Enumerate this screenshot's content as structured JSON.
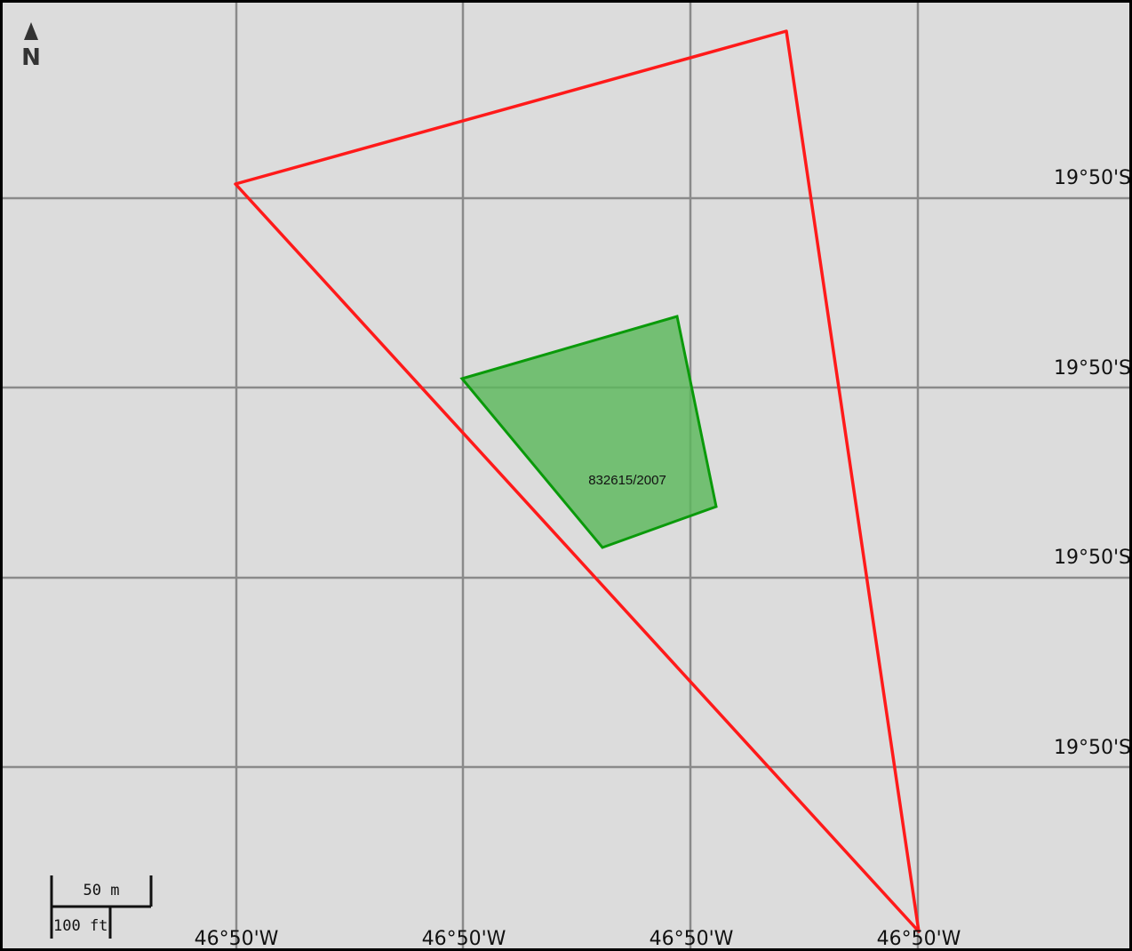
{
  "map": {
    "background_color": "#dcdcdc",
    "grid_color": "#8a8a8a",
    "north_arrow": {
      "icon": "north-arrow-icon",
      "label": "N"
    },
    "latitude_labels": [
      "19°50'S",
      "19°50'S",
      "19°50'S",
      "19°50'S"
    ],
    "longitude_labels": [
      "46°50'W",
      "46°50'W",
      "46°50'W",
      "46°50'W"
    ],
    "scale_bar": {
      "metric_label": "50 m",
      "imperial_label": "100 ft"
    },
    "features": [
      {
        "name": "outer-boundary-polygon",
        "stroke_color": "#ff1a1a",
        "fill_color": "none",
        "label": ""
      },
      {
        "name": "parcel-832615-2007",
        "stroke_color": "#0a9a0a",
        "fill_color": "#5cb85c",
        "label": "832615/2007"
      }
    ]
  }
}
